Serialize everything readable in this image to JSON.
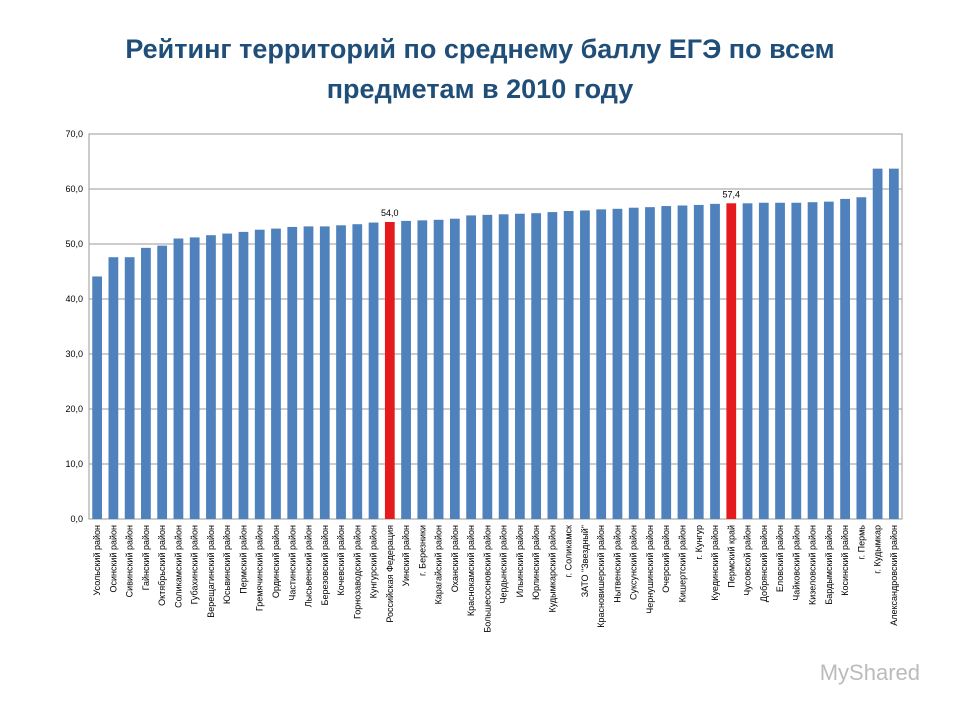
{
  "chart_data": {
    "type": "bar",
    "title_lines": [
      "Рейтинг территорий по среднему баллу ЕГЭ по всем",
      "предметам  в 2010 году"
    ],
    "categories": [
      "Усольский район",
      "Осинский район",
      "Сивинский район",
      "Гайнский район",
      "Октябрьский район",
      "Соликамский район",
      "Губахинский район",
      "Верещагинский район",
      "Юсьвинский район",
      "Пермский район",
      "Гремячинский район",
      "Ординский район",
      "Частинский район",
      "Лысьвенский район",
      "Березовский район",
      "Кочевский район",
      "Горнозаводский район",
      "Кунгурский район",
      "Российская Федерация",
      "Уинский район",
      "г. Березники",
      "Карагайский район",
      "Оханский район",
      "Краснокамский район",
      "Большесосновский район",
      "Чердынский район",
      "Ильинский район",
      "Юрлинский район",
      "Кудымкарский район",
      "г. Соликамск",
      "ЗАТО \"Звездный\"",
      "Красновишерский район",
      "Нытвенский район",
      "Суксунский район",
      "Чернушинский район",
      "Очерский район",
      "Кишертский район",
      "г. Кунгур",
      "Куединский район",
      "Пермский край",
      "Чусовской район",
      "Добрянский район",
      "Еловский район",
      "Чайковский район",
      "Кизеловский район",
      "Бардымский район",
      "Косинский район",
      "г. Пермь",
      "г. Кудымкар",
      "Александровский район"
    ],
    "values": [
      44.1,
      47.6,
      47.6,
      49.3,
      49.7,
      51.0,
      51.2,
      51.6,
      51.9,
      52.2,
      52.6,
      52.8,
      53.1,
      53.2,
      53.2,
      53.4,
      53.6,
      53.9,
      54.0,
      54.2,
      54.3,
      54.4,
      54.6,
      55.2,
      55.3,
      55.4,
      55.5,
      55.6,
      55.8,
      56.0,
      56.1,
      56.3,
      56.4,
      56.6,
      56.7,
      56.9,
      57.0,
      57.1,
      57.3,
      57.4,
      57.4,
      57.5,
      57.5,
      57.5,
      57.6,
      57.7,
      58.2,
      58.5,
      63.7,
      63.7
    ],
    "value_labels": [
      null,
      null,
      null,
      null,
      null,
      null,
      null,
      null,
      null,
      null,
      null,
      null,
      null,
      null,
      null,
      null,
      null,
      null,
      "54,0",
      null,
      null,
      null,
      null,
      null,
      null,
      null,
      null,
      null,
      null,
      null,
      null,
      null,
      null,
      null,
      null,
      null,
      null,
      null,
      null,
      "57,4",
      null,
      null,
      null,
      null,
      null,
      null,
      null,
      null,
      null,
      null
    ],
    "colors": [
      "#4f81bd",
      "#4f81bd",
      "#4f81bd",
      "#4f81bd",
      "#4f81bd",
      "#4f81bd",
      "#4f81bd",
      "#4f81bd",
      "#4f81bd",
      "#4f81bd",
      "#4f81bd",
      "#4f81bd",
      "#4f81bd",
      "#4f81bd",
      "#4f81bd",
      "#4f81bd",
      "#4f81bd",
      "#4f81bd",
      "#e41a1c",
      "#4f81bd",
      "#4f81bd",
      "#4f81bd",
      "#4f81bd",
      "#4f81bd",
      "#4f81bd",
      "#4f81bd",
      "#4f81bd",
      "#4f81bd",
      "#4f81bd",
      "#4f81bd",
      "#4f81bd",
      "#4f81bd",
      "#4f81bd",
      "#4f81bd",
      "#4f81bd",
      "#4f81bd",
      "#4f81bd",
      "#4f81bd",
      "#4f81bd",
      "#e41a1c",
      "#4f81bd",
      "#4f81bd",
      "#4f81bd",
      "#4f81bd",
      "#4f81bd",
      "#4f81bd",
      "#4f81bd",
      "#4f81bd",
      "#4f81bd",
      "#4f81bd"
    ],
    "ylim": [
      0,
      70
    ],
    "yticks": [
      {
        "value": 0,
        "label": "0,0"
      },
      {
        "value": 10,
        "label": "10,0"
      },
      {
        "value": 20,
        "label": "20,0"
      },
      {
        "value": 30,
        "label": "30,0"
      },
      {
        "value": 40,
        "label": "40,0"
      },
      {
        "value": 50,
        "label": "50,0"
      },
      {
        "value": 60,
        "label": "60,0"
      },
      {
        "value": 70,
        "label": "70,0"
      }
    ],
    "grid": true,
    "watermark": "MyShared"
  }
}
